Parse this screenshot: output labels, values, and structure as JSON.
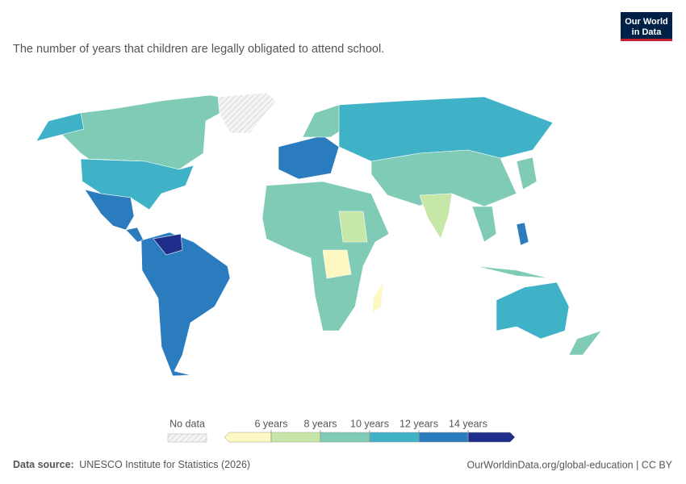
{
  "header": {
    "logo": [
      "Our World",
      "in Data"
    ],
    "subtitle": "The number of years that children are legally obligated to attend school."
  },
  "legend": {
    "no_data": "No data",
    "ticks": [
      {
        "value": 6,
        "label": "6 years"
      },
      {
        "value": 8,
        "label": "8 years"
      },
      {
        "value": 10,
        "label": "10 years"
      },
      {
        "value": 12,
        "label": "12 years"
      },
      {
        "value": 14,
        "label": "14 years"
      }
    ],
    "colors": [
      "#fdf7c2",
      "#c7e7a8",
      "#7fcbb6",
      "#40b2c8",
      "#2b7cbf",
      "#1f2e8a"
    ]
  },
  "footer": {
    "source_label": "Data source:",
    "source": "UNESCO Institute for Statistics (2026)",
    "url": "OurWorldinData.org/global-education | CC BY"
  }
}
